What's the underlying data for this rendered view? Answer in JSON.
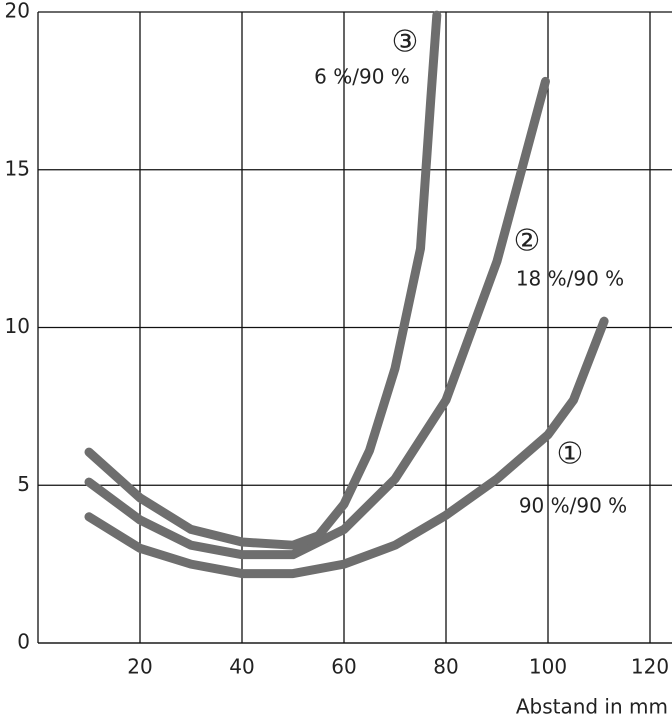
{
  "chart_data": {
    "type": "line",
    "x_label": "Abstand in mm",
    "xlim": [
      0,
      124
    ],
    "xticks": [
      20,
      40,
      60,
      80,
      100,
      120
    ],
    "ylim": [
      0,
      20
    ],
    "yticks": [
      0,
      5,
      10,
      15,
      20
    ],
    "grid": true,
    "series": [
      {
        "name": "90 %/90 %",
        "marker": "①",
        "color": "#6e6e6e",
        "x": [
          10,
          20,
          30,
          40,
          50,
          60,
          70,
          80,
          90,
          100,
          105,
          111
        ],
        "values": [
          4.0,
          3.0,
          2.5,
          2.2,
          2.2,
          2.5,
          3.1,
          4.05,
          5.2,
          6.6,
          7.7,
          10.2
        ]
      },
      {
        "name": "18 %/90 %",
        "marker": "②",
        "color": "#6e6e6e",
        "x": [
          10,
          20,
          30,
          40,
          50,
          60,
          70,
          80,
          90,
          99.5
        ],
        "values": [
          5.1,
          3.9,
          3.1,
          2.8,
          2.8,
          3.6,
          5.2,
          7.7,
          12.1,
          17.8
        ]
      },
      {
        "name": "6 %/90 %",
        "marker": "③",
        "color": "#6e6e6e",
        "x": [
          10,
          20,
          30,
          40,
          50,
          55,
          60,
          65,
          70,
          75,
          77,
          78.2
        ],
        "values": [
          6.05,
          4.6,
          3.6,
          3.2,
          3.1,
          3.4,
          4.4,
          6.1,
          8.7,
          12.5,
          17.2,
          19.9
        ]
      }
    ]
  }
}
